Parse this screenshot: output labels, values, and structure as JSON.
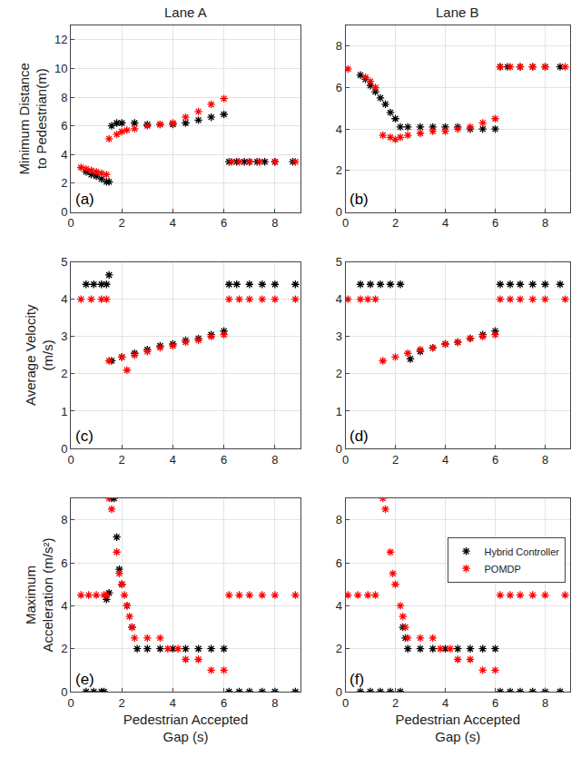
{
  "chart_data": [
    {
      "type": "scatter",
      "title": "Lane A",
      "ylabel": "Minimum Distance\nto Pedestrian(m)",
      "annotations": [
        "(a)"
      ],
      "xlim": [
        0,
        9
      ],
      "xticks": [
        0,
        2,
        4,
        6,
        8
      ],
      "ylim": [
        0,
        13
      ],
      "yticks": [
        0,
        2,
        4,
        6,
        8,
        10,
        12
      ],
      "grid": true,
      "series": [
        {
          "name": "Hybrid Controller",
          "color": "#000000",
          "marker": "star",
          "x": [
            0.6,
            0.8,
            1.0,
            1.2,
            1.4,
            1.5,
            1.6,
            1.8,
            2.0,
            2.5,
            3.0,
            3.5,
            4.0,
            4.5,
            5.0,
            5.5,
            6.0,
            6.2,
            6.5,
            6.8,
            7.0,
            7.3,
            7.6,
            8.0,
            8.7
          ],
          "values": [
            2.8,
            2.6,
            2.5,
            2.3,
            2.1,
            2.1,
            6.0,
            6.2,
            6.2,
            6.2,
            6.1,
            6.1,
            6.1,
            6.2,
            6.4,
            6.6,
            6.8,
            3.5,
            3.5,
            3.5,
            3.5,
            3.5,
            3.5,
            3.5,
            3.5
          ]
        },
        {
          "name": "POMDP",
          "color": "#ff0000",
          "marker": "star",
          "x": [
            0.4,
            0.6,
            0.8,
            1.0,
            1.2,
            1.4,
            1.5,
            1.8,
            2.0,
            2.2,
            2.5,
            3.0,
            3.5,
            4.0,
            4.5,
            5.0,
            5.5,
            6.0,
            6.3,
            6.6,
            7.0,
            7.4,
            8.0,
            8.8
          ],
          "values": [
            3.1,
            3.0,
            2.9,
            2.8,
            2.7,
            2.6,
            5.1,
            5.4,
            5.6,
            5.7,
            5.8,
            6.0,
            6.1,
            6.2,
            6.6,
            7.0,
            7.5,
            7.9,
            3.5,
            3.5,
            3.5,
            3.5,
            3.5,
            3.5
          ]
        }
      ]
    },
    {
      "type": "scatter",
      "title": "Lane B",
      "annotations": [
        "(b)"
      ],
      "xlim": [
        0,
        9
      ],
      "xticks": [
        0,
        2,
        4,
        6,
        8
      ],
      "ylim": [
        0,
        9
      ],
      "yticks": [
        0,
        2,
        4,
        6,
        8
      ],
      "grid": true,
      "series": [
        {
          "name": "Hybrid Controller",
          "color": "#000000",
          "marker": "star",
          "x": [
            0.6,
            0.8,
            1.0,
            1.2,
            1.4,
            1.6,
            1.8,
            2.0,
            2.2,
            2.5,
            3.0,
            3.5,
            4.0,
            4.5,
            5.0,
            5.5,
            6.0,
            6.2,
            6.5,
            7.0,
            7.5,
            8.0,
            8.6
          ],
          "values": [
            6.6,
            6.4,
            6.1,
            5.8,
            5.5,
            5.2,
            4.8,
            4.5,
            4.1,
            4.1,
            4.1,
            4.1,
            4.1,
            4.1,
            4.0,
            4.0,
            4.0,
            7.0,
            7.0,
            7.0,
            7.0,
            7.0,
            7.0
          ]
        },
        {
          "name": "POMDP",
          "color": "#ff0000",
          "marker": "star",
          "x": [
            0.1,
            0.8,
            1.0,
            1.2,
            1.5,
            1.8,
            2.0,
            2.2,
            2.5,
            3.0,
            3.5,
            4.0,
            4.5,
            5.0,
            5.5,
            6.0,
            6.2,
            6.6,
            7.0,
            7.5,
            8.0,
            8.8
          ],
          "values": [
            6.9,
            6.5,
            6.3,
            6.0,
            3.7,
            3.6,
            3.5,
            3.6,
            3.7,
            3.8,
            3.9,
            3.9,
            4.0,
            4.1,
            4.3,
            4.5,
            7.0,
            7.0,
            7.0,
            7.0,
            7.0,
            7.0
          ]
        }
      ]
    },
    {
      "type": "scatter",
      "ylabel": "Average Velocity\n(m/s)",
      "annotations": [
        "(c)"
      ],
      "xlim": [
        0,
        9
      ],
      "xticks": [
        0,
        2,
        4,
        6,
        8
      ],
      "ylim": [
        0,
        5
      ],
      "yticks": [
        0,
        1,
        2,
        3,
        4,
        5
      ],
      "grid": true,
      "series": [
        {
          "name": "Hybrid Controller",
          "color": "#000000",
          "marker": "star",
          "x": [
            0.6,
            0.9,
            1.2,
            1.4,
            1.5,
            1.6,
            2.0,
            2.5,
            3.0,
            3.5,
            4.0,
            4.5,
            5.0,
            5.5,
            6.0,
            6.2,
            6.5,
            7.0,
            7.5,
            8.0,
            8.8
          ],
          "values": [
            4.4,
            4.4,
            4.4,
            4.4,
            4.65,
            2.35,
            2.45,
            2.55,
            2.65,
            2.75,
            2.8,
            2.9,
            2.95,
            3.05,
            3.15,
            4.4,
            4.4,
            4.4,
            4.4,
            4.4,
            4.4
          ]
        },
        {
          "name": "POMDP",
          "color": "#ff0000",
          "marker": "star",
          "x": [
            0.4,
            0.8,
            1.2,
            1.4,
            1.5,
            2.0,
            2.2,
            2.5,
            3.0,
            3.5,
            4.0,
            4.5,
            5.0,
            5.5,
            6.0,
            6.2,
            6.6,
            7.0,
            7.5,
            8.0,
            8.8
          ],
          "values": [
            4.0,
            4.0,
            4.0,
            4.0,
            2.35,
            2.45,
            2.1,
            2.5,
            2.6,
            2.7,
            2.75,
            2.85,
            2.9,
            3.0,
            3.05,
            4.0,
            4.0,
            4.0,
            4.0,
            4.0,
            4.0
          ]
        }
      ]
    },
    {
      "type": "scatter",
      "annotations": [
        "(d)"
      ],
      "xlim": [
        0,
        9
      ],
      "xticks": [
        0,
        2,
        4,
        6,
        8
      ],
      "ylim": [
        0,
        5
      ],
      "yticks": [
        0,
        1,
        2,
        3,
        4,
        5
      ],
      "grid": true,
      "series": [
        {
          "name": "Hybrid Controller",
          "color": "#000000",
          "marker": "star",
          "x": [
            0.6,
            1.0,
            1.4,
            1.8,
            2.2,
            2.6,
            3.0,
            3.5,
            4.0,
            4.5,
            5.0,
            5.5,
            6.0,
            6.2,
            6.6,
            7.0,
            7.5,
            8.0,
            8.6
          ],
          "values": [
            4.4,
            4.4,
            4.4,
            4.4,
            4.4,
            2.4,
            2.6,
            2.7,
            2.8,
            2.85,
            2.95,
            3.05,
            3.15,
            4.4,
            4.4,
            4.4,
            4.4,
            4.4,
            4.4
          ]
        },
        {
          "name": "POMDP",
          "color": "#ff0000",
          "marker": "star",
          "x": [
            0.1,
            0.6,
            0.9,
            1.2,
            1.5,
            2.0,
            2.5,
            3.0,
            3.5,
            4.0,
            4.5,
            5.0,
            5.5,
            6.0,
            6.2,
            6.6,
            7.0,
            7.5,
            8.0,
            8.8
          ],
          "values": [
            4.0,
            4.0,
            4.0,
            4.0,
            2.35,
            2.45,
            2.55,
            2.65,
            2.7,
            2.8,
            2.85,
            2.95,
            3.0,
            3.05,
            4.0,
            4.0,
            4.0,
            4.0,
            4.0,
            4.0
          ]
        }
      ]
    },
    {
      "type": "scatter",
      "ylabel": "Maximum\nAcceleration (m/s²)",
      "xlabel": "Pedestrian Accepted\nGap (s)",
      "annotations": [
        "(e)"
      ],
      "xlim": [
        0,
        9
      ],
      "xticks": [
        0,
        2,
        4,
        6,
        8
      ],
      "ylim": [
        0,
        9
      ],
      "yticks": [
        0,
        2,
        4,
        6,
        8
      ],
      "grid": true,
      "series": [
        {
          "name": "Hybrid Controller",
          "color": "#000000",
          "marker": "star",
          "x": [
            0.6,
            0.9,
            1.2,
            1.3,
            1.4,
            1.5,
            1.6,
            1.7,
            1.8,
            1.9,
            2.0,
            2.2,
            2.4,
            2.6,
            3.0,
            3.5,
            4.0,
            4.5,
            5.0,
            5.5,
            6.0,
            6.2,
            6.6,
            7.0,
            7.5,
            8.0,
            8.8
          ],
          "values": [
            0,
            0,
            0,
            0,
            4.3,
            4.6,
            9.0,
            9.0,
            7.2,
            5.7,
            5.0,
            4.0,
            3.0,
            2.0,
            2.0,
            2.0,
            2.0,
            2.0,
            2.0,
            2.0,
            2.0,
            0,
            0,
            0,
            0,
            0,
            0
          ]
        },
        {
          "name": "POMDP",
          "color": "#ff0000",
          "marker": "star",
          "x": [
            0.4,
            0.7,
            1.0,
            1.3,
            1.4,
            1.5,
            1.6,
            1.8,
            1.9,
            2.0,
            2.1,
            2.2,
            2.3,
            2.4,
            2.5,
            3.0,
            3.5,
            3.8,
            4.2,
            4.5,
            5.0,
            5.5,
            6.0,
            6.2,
            6.6,
            7.0,
            7.5,
            8.0,
            8.8
          ],
          "values": [
            4.5,
            4.5,
            4.5,
            4.5,
            4.5,
            9.0,
            8.5,
            6.5,
            5.5,
            5.0,
            4.5,
            4.0,
            3.5,
            3.0,
            2.5,
            2.5,
            2.5,
            2.0,
            2.0,
            1.5,
            1.5,
            1.0,
            1.0,
            4.5,
            4.5,
            4.5,
            4.5,
            4.5,
            4.5
          ]
        }
      ]
    },
    {
      "type": "scatter",
      "xlabel": "Pedestrian Accepted\nGap (s)",
      "annotations": [
        "(f)"
      ],
      "legend": "upper right",
      "xlim": [
        0,
        9
      ],
      "xticks": [
        0,
        2,
        4,
        6,
        8
      ],
      "ylim": [
        0,
        9
      ],
      "yticks": [
        0,
        2,
        4,
        6,
        8
      ],
      "grid": true,
      "series": [
        {
          "name": "Hybrid Controller",
          "color": "#000000",
          "marker": "star",
          "x": [
            0.6,
            1.0,
            1.4,
            1.8,
            2.2,
            2.3,
            2.4,
            2.5,
            3.0,
            3.5,
            4.0,
            4.5,
            5.0,
            5.5,
            6.0,
            6.2,
            6.6,
            7.0,
            7.5,
            8.0,
            8.6
          ],
          "values": [
            0,
            0,
            0,
            0,
            0,
            3.0,
            2.5,
            2.0,
            2.0,
            2.0,
            2.0,
            2.0,
            2.0,
            2.0,
            2.0,
            0,
            0,
            0,
            0,
            0,
            0
          ]
        },
        {
          "name": "POMDP",
          "color": "#ff0000",
          "marker": "star",
          "x": [
            0.1,
            0.5,
            0.9,
            1.2,
            1.5,
            1.6,
            1.8,
            1.9,
            2.0,
            2.2,
            2.3,
            2.4,
            2.5,
            3.0,
            3.5,
            3.8,
            4.2,
            4.5,
            5.0,
            5.5,
            6.0,
            6.2,
            6.6,
            7.0,
            7.5,
            8.0,
            8.8
          ],
          "values": [
            4.5,
            4.5,
            4.5,
            4.5,
            9.0,
            8.5,
            6.5,
            5.5,
            5.0,
            4.0,
            3.5,
            3.0,
            2.5,
            2.5,
            2.5,
            2.0,
            2.0,
            1.5,
            1.5,
            1.0,
            1.0,
            4.5,
            4.5,
            4.5,
            4.5,
            4.5,
            4.5
          ]
        }
      ]
    }
  ]
}
